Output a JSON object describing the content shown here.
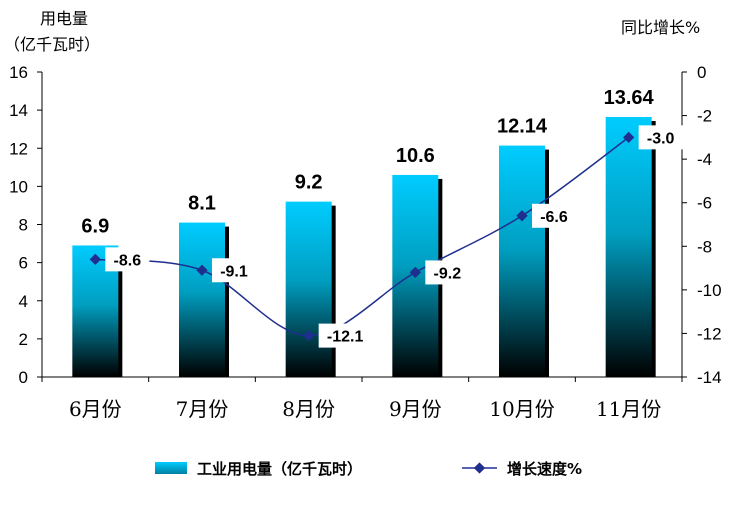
{
  "chart_data": {
    "type": "bar",
    "categories": [
      "6月份",
      "7月份",
      "8月份",
      "9月份",
      "10月份",
      "11月份"
    ],
    "series": [
      {
        "name": "工业用电量（亿千瓦时）",
        "type": "bar",
        "axis": "left",
        "values": [
          6.9,
          8.1,
          9.2,
          10.6,
          12.14,
          13.64
        ],
        "labels": [
          "6.9",
          "8.1",
          "9.2",
          "10.6",
          "12.14",
          "13.64"
        ]
      },
      {
        "name": "增长速度%",
        "type": "line",
        "axis": "right",
        "values": [
          -8.6,
          -9.1,
          -12.1,
          -9.2,
          -6.6,
          -3.0
        ],
        "labels": [
          "-8.6",
          "-9.1",
          "-12.1",
          "-9.2",
          "-6.6",
          "-3.0"
        ]
      }
    ],
    "y_left": {
      "title_line1": "用电量",
      "title_line2": "（亿千瓦时）",
      "ylim": [
        0,
        16
      ],
      "ticks": [
        "0",
        "2",
        "4",
        "6",
        "8",
        "10",
        "12",
        "14",
        "16"
      ]
    },
    "y_right": {
      "title": "同比增长%",
      "ylim": [
        -14,
        0
      ],
      "ticks": [
        "0",
        "-2",
        "-4",
        "-6",
        "-8",
        "-10",
        "-12",
        "-14"
      ]
    },
    "legend": [
      "工业用电量（亿千瓦时）",
      "增长速度%"
    ],
    "legend_position": "bottom",
    "grid": false
  },
  "colors": {
    "bar_top": "#00ccff",
    "bar_bottom": "#000000",
    "bar_shadow": "#000000",
    "line": "#1f2f8f",
    "axis": "#000000"
  }
}
